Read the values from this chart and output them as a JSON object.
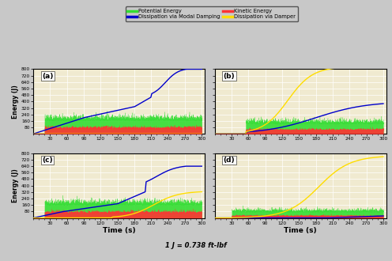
{
  "xlabel": "Time (s)",
  "ylabel": "Energy (J)",
  "note": "1 J = 0.738 ft-lbf",
  "xlim": [
    0,
    305
  ],
  "ylim": [
    0,
    800
  ],
  "yticks": [
    80,
    160,
    240,
    320,
    400,
    480,
    560,
    640,
    720,
    800
  ],
  "xticks": [
    30,
    60,
    90,
    120,
    150,
    180,
    210,
    240,
    270,
    300
  ],
  "subplots": [
    "(a)",
    "(b)",
    "(c)",
    "(d)"
  ],
  "colors": {
    "potential": "#33dd33",
    "kinetic": "#ff3333",
    "modal_damping": "#0000cc",
    "damper": "#ffdd00"
  },
  "legend_entries": [
    {
      "label": "Potential Energy",
      "color": "#33dd33"
    },
    {
      "label": "Dissipation via Modal Damping",
      "color": "#0000cc"
    },
    {
      "label": "Kinetic Energy",
      "color": "#ff3333"
    },
    {
      "label": "Dissipation via Damper",
      "color": "#ffdd00"
    }
  ],
  "background_color": "#c8c8c8",
  "plot_bg": "#f0ead0",
  "seed": 42
}
